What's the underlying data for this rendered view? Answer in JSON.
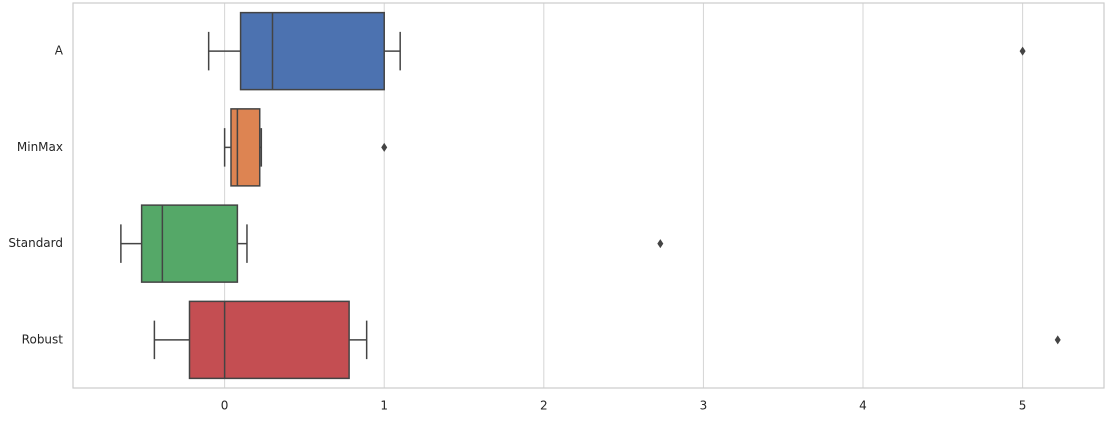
{
  "chart_data": {
    "type": "box",
    "orientation": "horizontal",
    "categories": [
      "A",
      "MinMax",
      "Standard",
      "Robust"
    ],
    "boxes": [
      {
        "whislo": -0.1,
        "q1": 0.1,
        "med": 0.3,
        "q3": 1.0,
        "whishi": 1.1,
        "fliers": [
          5.0
        ],
        "color": "#4c72b0"
      },
      {
        "whislo": 0.0,
        "q1": 0.04,
        "med": 0.08,
        "q3": 0.22,
        "whishi": 0.23,
        "fliers": [
          1.0
        ],
        "color": "#dd8452"
      },
      {
        "whislo": -0.65,
        "q1": -0.52,
        "med": -0.39,
        "q3": 0.08,
        "whishi": 0.14,
        "fliers": [
          2.73
        ],
        "color": "#55a868"
      },
      {
        "whislo": -0.44,
        "q1": -0.22,
        "med": 0.0,
        "q3": 0.78,
        "whishi": 0.89,
        "fliers": [
          5.22
        ],
        "color": "#c44e52"
      }
    ],
    "xlim": [
      -0.95,
      5.51
    ],
    "xticks": [
      0,
      1,
      2,
      3,
      4,
      5
    ],
    "grid": true
  }
}
